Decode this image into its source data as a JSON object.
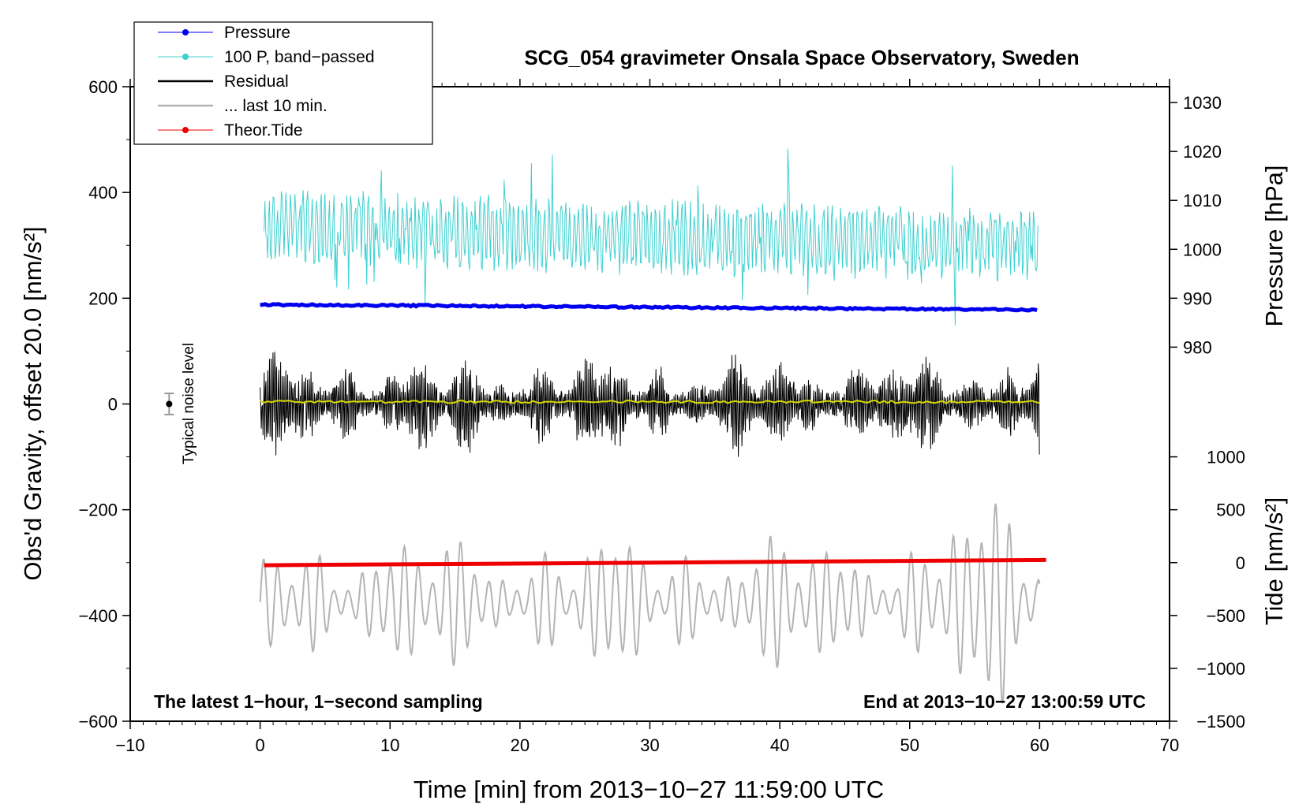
{
  "chart_data": {
    "type": "line",
    "title": "SCG_054 gravimeter Onsala Space Observatory, Sweden",
    "xlabel": "Time [min] from 2013−10−27 11:59:00 UTC",
    "ylabel_left": "Obs'd Gravity, offset 20.0 [nm/s²]",
    "ylabel_pressure": "Pressure [hPa]",
    "ylabel_tide": "Tide [nm/s²]",
    "xlim": [
      -10,
      70
    ],
    "ylim": [
      -600,
      600
    ],
    "x_ticks": [
      -10,
      0,
      10,
      20,
      30,
      40,
      50,
      60,
      70
    ],
    "x_tick_labels": [
      "−10",
      "0",
      "10",
      "20",
      "30",
      "40",
      "50",
      "60",
      "70"
    ],
    "y_ticks": [
      -600,
      -400,
      -200,
      0,
      200,
      400,
      600
    ],
    "y_tick_labels": [
      "−600",
      "−400",
      "−200",
      "0",
      "200",
      "400",
      "600"
    ],
    "pressure_axis": {
      "values": [
        980,
        990,
        1000,
        1010,
        1020,
        1030
      ],
      "labels": [
        "980",
        "990",
        "1000",
        "1010",
        "1020",
        "1030"
      ],
      "gravity_at_990": 200,
      "gravity_per_hpa": 9.25
    },
    "tide_axis": {
      "values": [
        -1500,
        -1000,
        -500,
        0,
        500,
        1000
      ],
      "labels": [
        "−1500",
        "−1000",
        "−500",
        "0",
        "500",
        "1000"
      ],
      "gravity_at_zero": -300,
      "gravity_per_unit": 0.2
    },
    "series": [
      {
        "name": "Pressure",
        "color": "#0000ee",
        "kind": "pressure",
        "start": 188,
        "end": 178
      },
      {
        "name": "100 P, band−passed",
        "color": "#3fd0d0",
        "kind": "bandpassed",
        "center_start": 335,
        "center_end": 295
      },
      {
        "name": "Residual",
        "color": "#000000",
        "kind": "residual",
        "center": 0
      },
      {
        "name": "... last 10 min.",
        "color": "#b4b4b4",
        "kind": "last10",
        "center": -375
      },
      {
        "name": "Theor.Tide",
        "color": "#ee0000",
        "kind": "tide",
        "start": -305,
        "end": -295
      }
    ],
    "mean_line_color": "#d8d800",
    "noise_bar": {
      "label": "Typical noise level",
      "x": -7,
      "y": 0,
      "half_range": 20
    },
    "annotation_left": "The latest 1−hour, 1−second sampling",
    "annotation_right": "End at 2013−10−27 13:00:59 UTC"
  }
}
